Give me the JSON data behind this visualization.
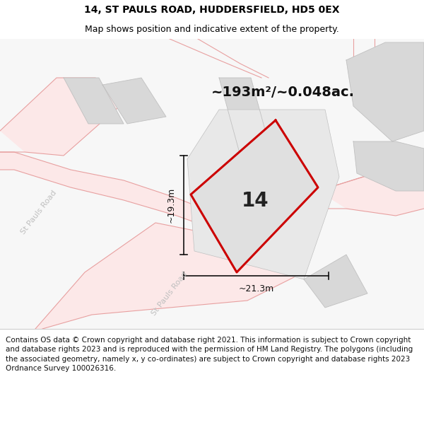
{
  "title": "14, ST PAULS ROAD, HUDDERSFIELD, HD5 0EX",
  "subtitle": "Map shows position and indicative extent of the property.",
  "area_text": "~193m²/~0.048ac.",
  "property_number": "14",
  "dim_width": "~21.3m",
  "dim_height": "~19.3m",
  "footer": "Contains OS data © Crown copyright and database right 2021. This information is subject to Crown copyright and database rights 2023 and is reproduced with the permission of HM Land Registry. The polygons (including the associated geometry, namely x, y co-ordinates) are subject to Crown copyright and database rights 2023 Ordnance Survey 100026316.",
  "map_bg": "#f7f7f7",
  "road_fill": "#fce8e8",
  "road_line": "#e8a0a0",
  "building_fill": "#d8d8d8",
  "building_line": "#c0c0c0",
  "property_fill": "#e0e0e0",
  "property_stroke": "#cc0000",
  "footer_bg": "#ffffff",
  "title_fontsize": 10,
  "subtitle_fontsize": 9,
  "area_fontsize": 14,
  "number_fontsize": 20,
  "dim_fontsize": 9,
  "road_label_fontsize": 8,
  "road_label_color": "#c0c0c0",
  "dim_line_color": "#111111",
  "road_label1": "St Pauls Road",
  "road_label2": "St Pauls Road"
}
